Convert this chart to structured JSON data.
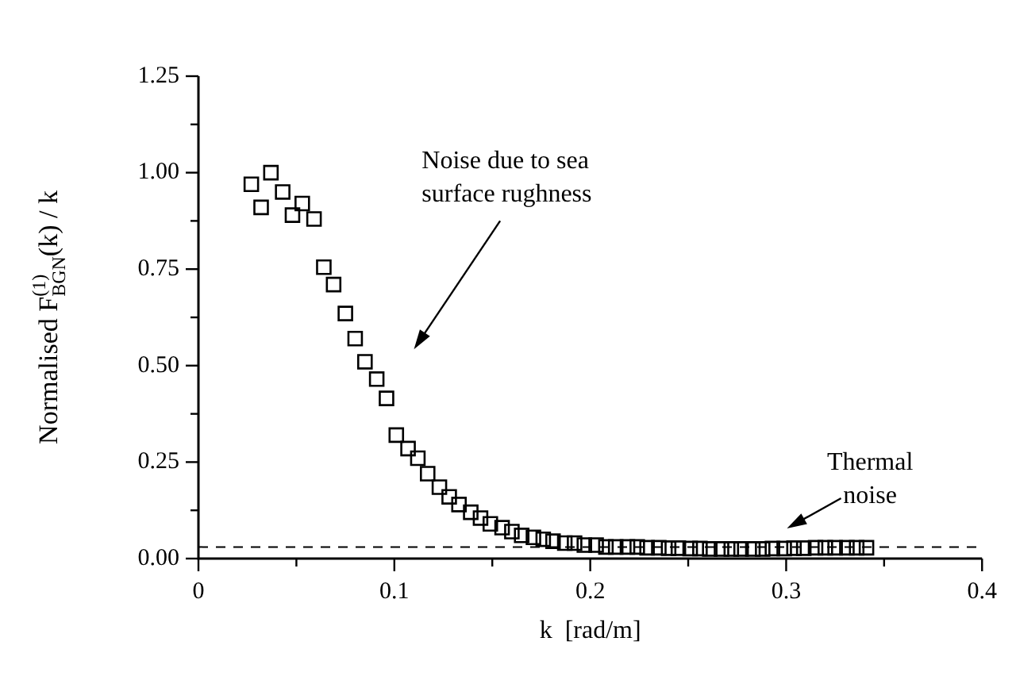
{
  "chart_data": {
    "type": "scatter",
    "xlabel": "k  [rad/m]",
    "ylabel": "Normalised F$_{BGN}$$^{(1)}$(k) / k",
    "x": [
      0.027,
      0.032,
      0.037,
      0.043,
      0.048,
      0.053,
      0.059,
      0.064,
      0.069,
      0.075,
      0.08,
      0.085,
      0.091,
      0.096,
      0.101,
      0.107,
      0.112,
      0.117,
      0.123,
      0.128,
      0.133,
      0.139,
      0.144,
      0.149,
      0.155,
      0.16,
      0.165,
      0.171,
      0.176,
      0.181,
      0.187,
      0.192,
      0.197,
      0.203,
      0.208,
      0.213,
      0.219,
      0.224,
      0.229,
      0.235,
      0.24,
      0.245,
      0.251,
      0.256,
      0.261,
      0.267,
      0.272,
      0.277,
      0.283,
      0.288,
      0.293,
      0.299,
      0.304,
      0.309,
      0.315,
      0.32,
      0.325,
      0.331,
      0.336,
      0.341
    ],
    "series": [
      {
        "color": "#000000",
        "values": [
          0.97,
          0.91,
          1.0,
          0.95,
          0.89,
          0.92,
          0.88,
          0.755,
          0.71,
          0.635,
          0.57,
          0.51,
          0.465,
          0.415,
          0.32,
          0.285,
          0.26,
          0.22,
          0.185,
          0.16,
          0.14,
          0.12,
          0.105,
          0.09,
          0.08,
          0.07,
          0.06,
          0.055,
          0.05,
          0.045,
          0.04,
          0.04,
          0.035,
          0.035,
          0.03,
          0.03,
          0.03,
          0.03,
          0.028,
          0.028,
          0.027,
          0.027,
          0.026,
          0.026,
          0.025,
          0.025,
          0.025,
          0.025,
          0.025,
          0.025,
          0.026,
          0.026,
          0.027,
          0.027,
          0.028,
          0.028,
          0.028,
          0.028,
          0.028,
          0.028
        ]
      }
    ],
    "marker": "square",
    "xlim": [
      0,
      0.4
    ],
    "ylim": [
      0,
      1.25
    ],
    "xticks": [
      0,
      {
        "value": 0.05,
        "label": null
      },
      {
        "value": 0.1,
        "label": "0.1"
      },
      {
        "value": 0.15,
        "label": null
      },
      {
        "value": 0.2,
        "label": "0.2"
      },
      {
        "value": 0.25,
        "label": null
      },
      {
        "value": 0.3,
        "label": "0.3"
      },
      {
        "value": 0.35,
        "label": null
      },
      {
        "value": 0.4,
        "label": "0.4"
      }
    ],
    "yticks": [
      {
        "value": 0,
        "label": "0.00"
      },
      {
        "value": 0.125,
        "label": null
      },
      {
        "value": 0.25,
        "label": "0.25"
      },
      {
        "value": 0.375,
        "label": null
      },
      {
        "value": 0.5,
        "label": "0.50"
      },
      {
        "value": 0.625,
        "label": null
      },
      {
        "value": 0.75,
        "label": "0.75"
      },
      {
        "value": 0.875,
        "label": null
      },
      {
        "value": 1,
        "label": "1.00"
      },
      {
        "value": 1.125,
        "label": null
      },
      {
        "value": 1.25,
        "label": "1.25"
      }
    ],
    "ref_lines": [
      {
        "axis": "y",
        "value": 0.03,
        "color": "#000000",
        "line_style": "dashed"
      }
    ],
    "annotations": [
      "Noise due to sea\nsurface rughness",
      "Thermal\nnoise"
    ],
    "grid": false,
    "legend": false
  }
}
